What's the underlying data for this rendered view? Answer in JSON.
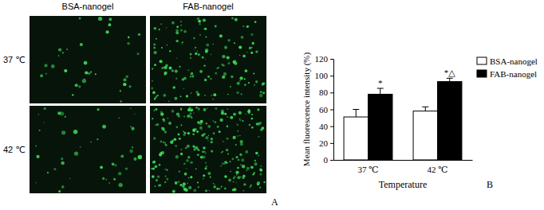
{
  "chart_data": {
    "type": "bar",
    "categories": [
      "37 ℃",
      "42 ℃"
    ],
    "series": [
      {
        "name": "BSA-nanogel",
        "color": "#ffffff",
        "values": [
          51,
          58
        ],
        "errors": [
          9,
          5
        ]
      },
      {
        "name": "FAB-nanogel",
        "color": "#000000",
        "values": [
          78,
          93
        ],
        "errors": [
          7,
          4
        ]
      }
    ],
    "x_label": "Temperature",
    "y_label": "Mean fluorescence intensity (%)",
    "ylim": [
      0,
      120
    ],
    "yticks": [
      0,
      20,
      40,
      60,
      80,
      100,
      120
    ],
    "grid": false,
    "legend": "upper right",
    "annotations": [
      {
        "series": 1,
        "index": 0,
        "text": "*"
      },
      {
        "series": 1,
        "index": 1,
        "text": "*△"
      }
    ],
    "panel_label": "B"
  },
  "micrographs": {
    "columns": [
      "BSA-nanogel",
      "FAB-nanogel"
    ],
    "rows": [
      "37 ℃",
      "42 ℃"
    ],
    "panel_label": "A"
  }
}
